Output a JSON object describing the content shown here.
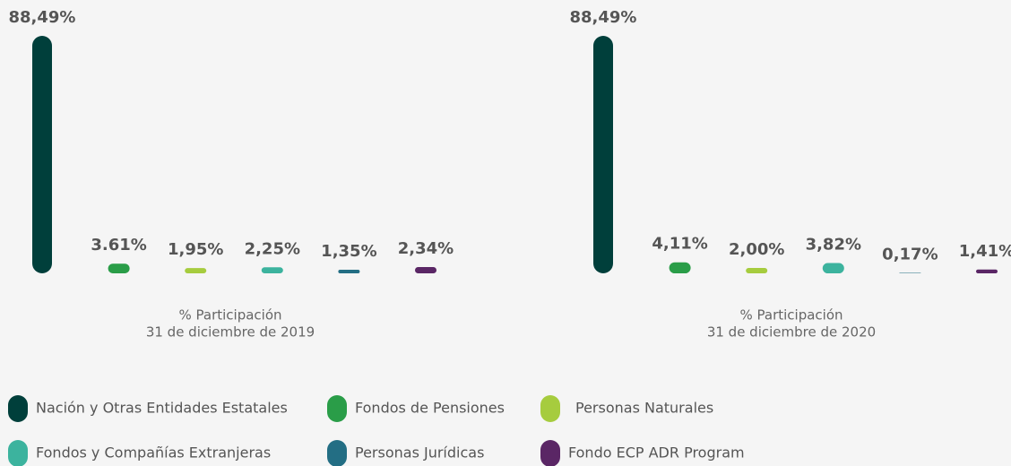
{
  "chart_data": [
    {
      "type": "bar",
      "title": "% Participación",
      "subtitle": "31 de diciembre de 2019",
      "categories": [
        "Nación y Otras Entidades Estatales",
        "Fondos de Pensiones",
        "Personas Naturales",
        "Fondos y Compañías Extranjeras",
        "Personas Jurídicas",
        "Fondo ECP ADR Program"
      ],
      "colors": [
        "#003f3b",
        "#2a9d48",
        "#a6cc3e",
        "#3cb39e",
        "#236e84",
        "#5a2665"
      ],
      "values": [
        88.49,
        3.61,
        1.95,
        2.25,
        1.35,
        2.34
      ],
      "value_labels": [
        "88,49%",
        "3.61%",
        "1,95%",
        "2,25%",
        "1,35%",
        "2,34%"
      ]
    },
    {
      "type": "bar",
      "title": "% Participación",
      "subtitle": "31 de diciembre de 2020",
      "categories": [
        "Nación y Otras Entidades Estatales",
        "Fondos de Pensiones",
        "Personas Naturales",
        "Fondos y Compañías Extranjeras",
        "Personas Jurídicas",
        "Fondo ECP ADR Program"
      ],
      "colors": [
        "#003f3b",
        "#2a9d48",
        "#a6cc3e",
        "#3cb39e",
        "#236e84",
        "#5a2665"
      ],
      "values": [
        88.49,
        4.11,
        2.0,
        3.82,
        0.17,
        1.41
      ],
      "value_labels": [
        "88,49%",
        "4,11%",
        "2,00%",
        "3,82%",
        "0,17%",
        "1,41%"
      ]
    }
  ]
}
